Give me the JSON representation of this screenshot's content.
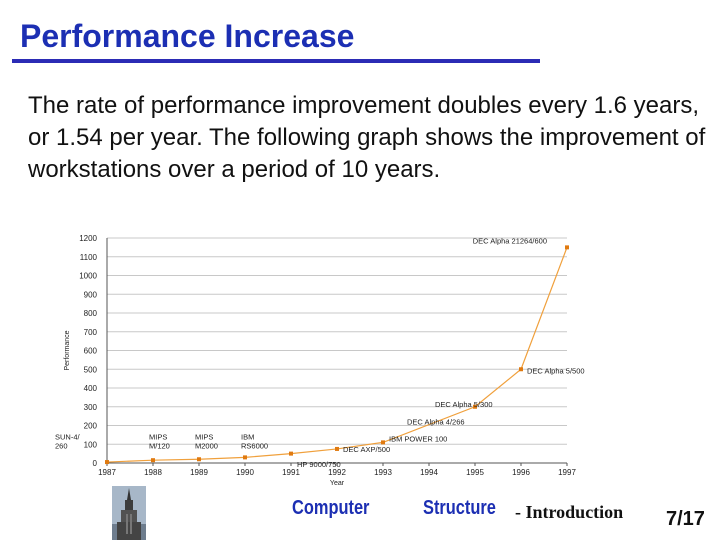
{
  "slide": {
    "title": "Performance Increase",
    "body": "The rate of performance improvement doubles every 1.6 years, or 1.54 per year. The following graph shows the improvement of workstations over a period of 10 years."
  },
  "footer": {
    "word1": "Computer",
    "word2": "Structure",
    "suffix": "- Introduction",
    "page": "7/17"
  },
  "colors": {
    "title": "#1c2fb3",
    "series": "#f0a03c",
    "marker": "#e07a10"
  },
  "chart_data": {
    "type": "line",
    "xlabel": "Year",
    "ylabel": "Performance",
    "ylim": [
      0,
      1200
    ],
    "xlim": [
      1987,
      1997
    ],
    "y_ticks": [
      0,
      100,
      200,
      300,
      400,
      500,
      600,
      700,
      800,
      900,
      1000,
      1100,
      1200
    ],
    "x_ticks": [
      "1987",
      "1988",
      "1989",
      "1990",
      "1991",
      "1992",
      "1993",
      "1994",
      "1995",
      "1996",
      "1997"
    ],
    "grid": true,
    "series": [
      {
        "x": [
          1987,
          1988,
          1989,
          1990,
          1991,
          1992,
          1993,
          1995,
          1996,
          1997
        ],
        "y": [
          5,
          15,
          20,
          30,
          50,
          75,
          110,
          300,
          500,
          1150
        ]
      }
    ],
    "annotations": [
      {
        "text": "SUN-4/ 260",
        "x": 1987,
        "y": 50
      },
      {
        "text": "MIPS M/120",
        "x": 1988,
        "y": 50
      },
      {
        "text": "MIPS M2000",
        "x": 1989,
        "y": 50
      },
      {
        "text": "IBM RS6000",
        "x": 1990,
        "y": 50
      },
      {
        "text": "HP 9000/750",
        "x": 1991,
        "y": 10
      },
      {
        "text": "DEC AXP/500",
        "x": 1992,
        "y": 60
      },
      {
        "text": "IBM POWER 100",
        "x": 1993,
        "y": 110
      },
      {
        "text": "DEC Alpha 4/266",
        "x": 1994,
        "y": 185
      },
      {
        "text": "DEC Alpha 5/300",
        "x": 1995,
        "y": 300
      },
      {
        "text": "DEC Alpha 5/500",
        "x": 1996,
        "y": 500
      },
      {
        "text": "DEC Alpha 21264/600",
        "x": 1997,
        "y": 1150
      }
    ]
  }
}
